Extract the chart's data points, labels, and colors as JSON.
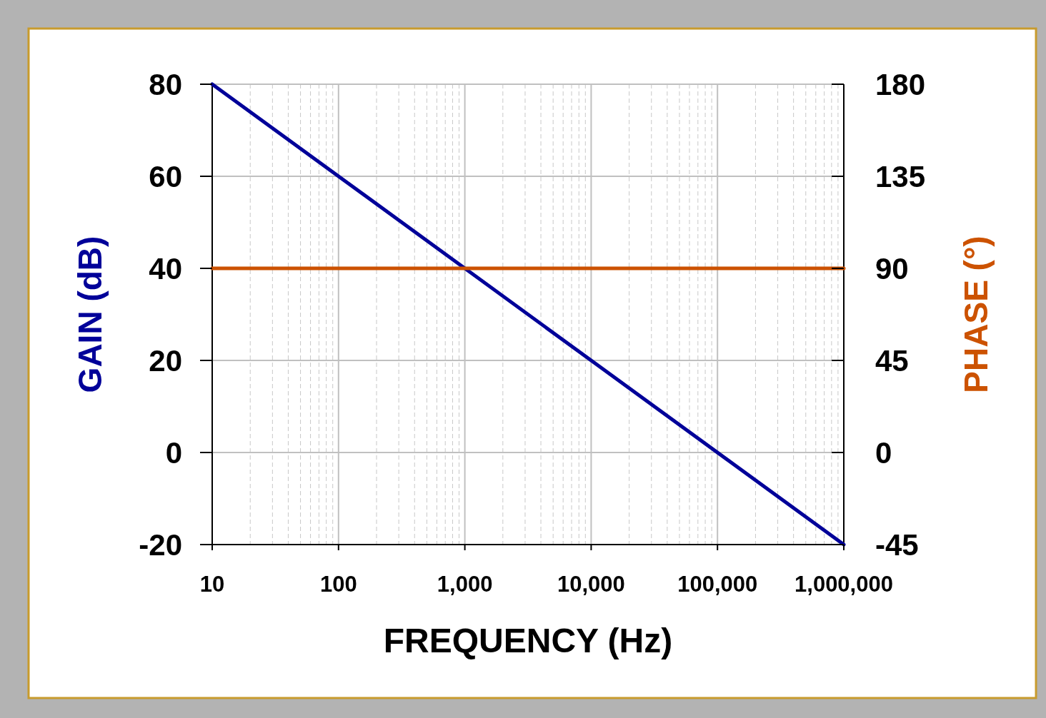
{
  "chart_data": {
    "type": "line",
    "xlabel": "FREQUENCY (Hz)",
    "ylabel": "GAIN (dB)",
    "y2label": "PHASE (°)",
    "log": "x",
    "grid": true,
    "x": [
      10,
      1000000
    ],
    "xlim": [
      10,
      1000000
    ],
    "xticks": [
      10,
      100,
      {
        "value": 1000,
        "label": "1,000"
      },
      {
        "value": 10000,
        "label": "10,000"
      },
      {
        "value": 100000,
        "label": "100,000"
      },
      {
        "value": 1000000,
        "label": "1,000,000"
      }
    ],
    "ylim": [
      -20,
      80
    ],
    "yticks": [
      -20,
      0,
      20,
      40,
      60,
      80
    ],
    "y2lim": [
      -45,
      180
    ],
    "y2ticks": [
      -45,
      0,
      45,
      90,
      135,
      180
    ],
    "series": [
      {
        "color": "#000099",
        "values": [
          80,
          -20
        ]
      },
      {
        "color": "#cc5200",
        "axis": "y2",
        "values": [
          90,
          90
        ]
      }
    ]
  }
}
